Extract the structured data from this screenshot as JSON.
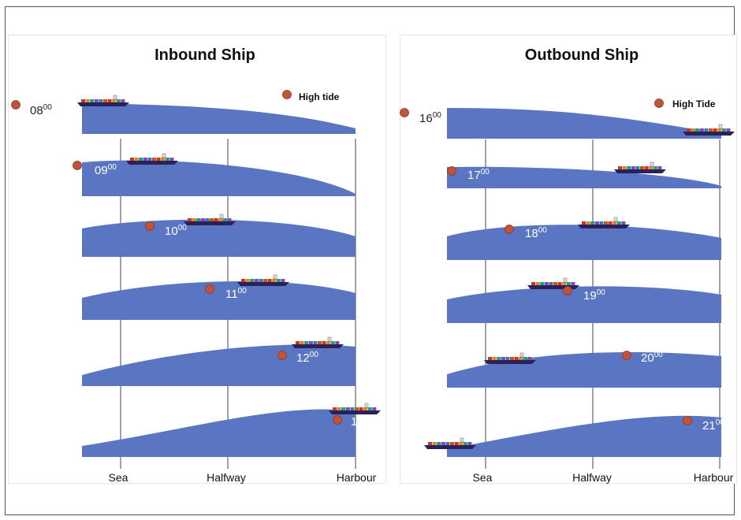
{
  "colors": {
    "water": "#5a76c2",
    "tide_dot": "#c0533a",
    "ship_hull": "#2a2158"
  },
  "inbound": {
    "title": "Inbound Ship",
    "legend": "High tide",
    "times": [
      {
        "hh": "08",
        "mm": "00"
      },
      {
        "hh": "09",
        "mm": "00"
      },
      {
        "hh": "10",
        "mm": "00"
      },
      {
        "hh": "11",
        "mm": "00"
      },
      {
        "hh": "12",
        "mm": "00"
      },
      {
        "hh": "13",
        "mm": "00"
      }
    ],
    "axis": [
      "Sea",
      "Halfway",
      "Harbour"
    ]
  },
  "outbound": {
    "title": "Outbound Ship",
    "legend": "High Tide",
    "times": [
      {
        "hh": "16",
        "mm": "00"
      },
      {
        "hh": "17",
        "mm": "00"
      },
      {
        "hh": "18",
        "mm": "00"
      },
      {
        "hh": "19",
        "mm": "00"
      },
      {
        "hh": "20",
        "mm": "00"
      },
      {
        "hh": "21",
        "mm": "00"
      }
    ],
    "axis": [
      "Sea",
      "Halfway",
      "Harbour"
    ]
  }
}
